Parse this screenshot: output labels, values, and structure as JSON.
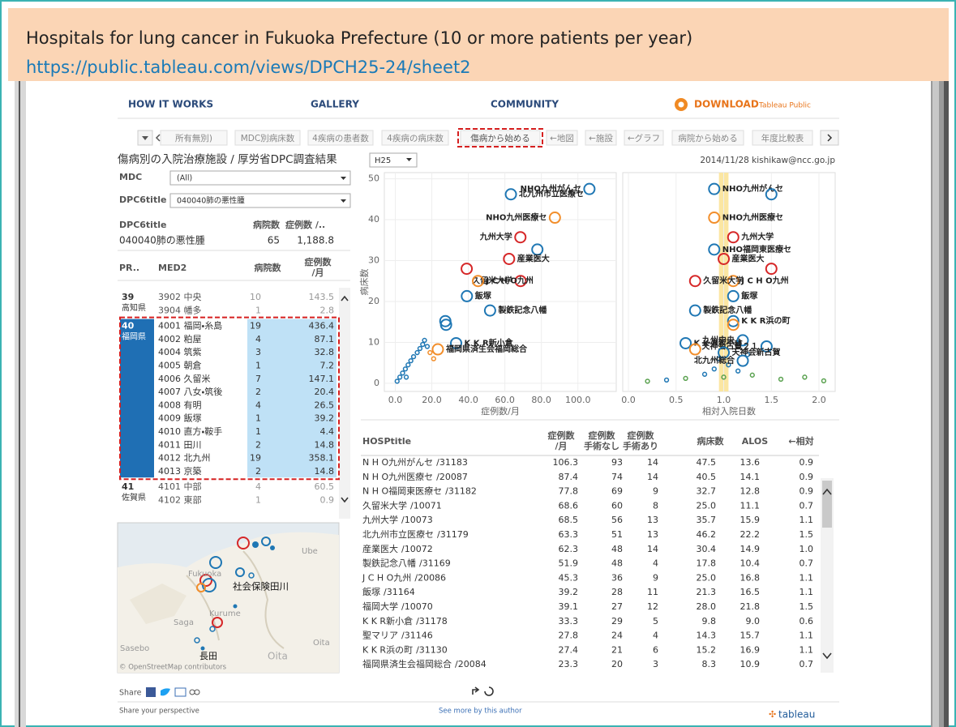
{
  "header": {
    "title": "Hospitals for lung cancer in Fukuoka Prefecture (10 or more patients per year)",
    "url": "https://public.tableau.com/views/DPCH25-24/sheet2"
  },
  "nav": {
    "items": [
      "HOW IT WORKS",
      "GALLERY",
      "COMMUNITY"
    ],
    "download": "DOWNLOAD",
    "download_sub": "Tableau Public"
  },
  "tabs": {
    "items": [
      "所有無別)",
      "MDC別病床数",
      "4疾病の患者数",
      "4疾病の病床数",
      "傷病から始める",
      "←地図",
      "←施設",
      "←グラフ",
      "病院から始める",
      "年度比較表"
    ],
    "active": 4
  },
  "dashboard": {
    "title": "傷病別の入院治療施設 / 厚労省DPC調査結果",
    "year": "H25",
    "credit": "2014/11/28 kishikaw@ncc.go.jp"
  },
  "filters": [
    {
      "label": "MDC",
      "value": "(All)"
    },
    {
      "label": "DPC6title",
      "value": "040040肺の悪性腫"
    }
  ],
  "summary": {
    "headers": [
      "DPC6title",
      "病院数",
      "症例数 /.."
    ],
    "row": [
      "040040肺の悪性腫",
      65,
      {
        "value": 1188.8,
        "label": "1,188.8"
      }
    ]
  },
  "med2_table": {
    "headers": [
      "PR..",
      "MED2",
      "病院数",
      [
        "症例数",
        "/月"
      ]
    ],
    "groups": [
      {
        "code": "39",
        "prefecture": "高知県",
        "rows": [
          [
            "3902 中央",
            10,
            143.5
          ],
          [
            "3904 幡多",
            1,
            2.8
          ]
        ]
      },
      {
        "code": "40",
        "prefecture": "福岡県",
        "selected": true,
        "rows": [
          [
            "4001 福岡・糸島",
            19,
            436.4
          ],
          [
            "4002 粕屋",
            4,
            87.1
          ],
          [
            "4004 筑紫",
            3,
            32.8
          ],
          [
            "4005 朝倉",
            1,
            7.2
          ],
          [
            "4006 久留米",
            7,
            147.1
          ],
          [
            "4007 八女・筑後",
            2,
            20.4
          ],
          [
            "4008 有明",
            4,
            26.5
          ],
          [
            "4009 飯塚",
            1,
            39.2
          ],
          [
            "4010 直方・鞍手",
            1,
            4.4
          ],
          [
            "4011 田川",
            2,
            14.8
          ],
          [
            "4012 北九州",
            19,
            358.1
          ],
          [
            "4013 京築",
            2,
            14.8
          ]
        ]
      },
      {
        "code": "41",
        "prefecture": "佐賀県",
        "rows": [
          [
            "4101 中部",
            4,
            60.5
          ],
          [
            "4102 東部",
            1,
            0.9
          ]
        ]
      }
    ]
  },
  "map": {
    "labels": [
      "Ube",
      "Fukuoka",
      "社会保険田川",
      "Kurume",
      "Saga",
      "Oita",
      "Oita",
      "Sasebo",
      "長田"
    ],
    "attribution": "© OpenStreetMap contributors"
  },
  "scatter_left": {
    "xlim": [
      -6,
      121
    ],
    "ylim": [
      -2,
      51.5
    ],
    "xticks": [
      {
        "value": 0,
        "label": "0.0"
      },
      {
        "value": 20,
        "label": "20.0"
      },
      {
        "value": 40,
        "label": "40.0"
      },
      {
        "value": 60,
        "label": "60.0"
      },
      {
        "value": 80,
        "label": "80.0"
      },
      {
        "value": 100,
        "label": "100.0"
      }
    ],
    "yticks": [
      0,
      10,
      20,
      30,
      40,
      50
    ],
    "xlabel": "症例数/月",
    "ylabel": "病床数",
    "grid": true,
    "points": [
      {
        "label": "NHO九州がんセ",
        "x": 106.3,
        "y": 47.5,
        "color": "#1f77b4"
      },
      {
        "label": "北九州市立医療セ",
        "x": 63.3,
        "y": 46.2,
        "color": "#1f77b4"
      },
      {
        "label": "NHO九州医療セ",
        "x": 87.4,
        "y": 40.5,
        "color": "#f28e2b"
      },
      {
        "label": "九州大学",
        "x": 68.5,
        "y": 35.7,
        "color": "#d62728"
      },
      {
        "x": 77.8,
        "y": 32.7,
        "color": "#1f77b4"
      },
      {
        "label": "産業医大",
        "x": 62.3,
        "y": 30.4,
        "color": "#d62728"
      },
      {
        "x": 39.1,
        "y": 28,
        "color": "#d62728"
      },
      {
        "label": "久留米大学",
        "x": 68.6,
        "y": 25,
        "color": "#d62728"
      },
      {
        "label": "J C H O九州",
        "x": 45.3,
        "y": 25,
        "color": "#f28e2b"
      },
      {
        "label": "飯塚",
        "x": 39.2,
        "y": 21.3,
        "color": "#1f77b4"
      },
      {
        "label": "製鉄記念八幡",
        "x": 51.9,
        "y": 17.8,
        "color": "#1f77b4"
      },
      {
        "x": 27.4,
        "y": 15.2,
        "color": "#1f77b4"
      },
      {
        "x": 27.8,
        "y": 14.3,
        "color": "#1f77b4"
      },
      {
        "label": "K K R新小倉",
        "x": 33.3,
        "y": 9.8,
        "color": "#1f77b4"
      },
      {
        "label": "福岡県済生会福岡総合",
        "x": 23.3,
        "y": 8.3,
        "color": "#f28e2b"
      }
    ],
    "dots": [
      {
        "x": 1,
        "y": 0.5,
        "color": "#1f77b4"
      },
      {
        "x": 2.5,
        "y": 1.5,
        "color": "#1f77b4"
      },
      {
        "x": 4,
        "y": 2.5,
        "color": "#1f77b4"
      },
      {
        "x": 5.5,
        "y": 3.5,
        "color": "#1f77b4"
      },
      {
        "x": 7,
        "y": 4.5,
        "color": "#1f77b4"
      },
      {
        "x": 8.5,
        "y": 5.5,
        "color": "#1f77b4"
      },
      {
        "x": 10,
        "y": 6.5,
        "color": "#1f77b4"
      },
      {
        "x": 12,
        "y": 7.5,
        "color": "#1f77b4"
      },
      {
        "x": 13.5,
        "y": 8.5,
        "color": "#1f77b4"
      },
      {
        "x": 15,
        "y": 9.5,
        "color": "#1f77b4"
      },
      {
        "x": 16,
        "y": 10.5,
        "color": "#1f77b4"
      },
      {
        "x": 17.5,
        "y": 9,
        "color": "#1f77b4"
      },
      {
        "x": 19,
        "y": 7.5,
        "color": "#f28e2b"
      },
      {
        "x": 21,
        "y": 6,
        "color": "#f28e2b"
      },
      {
        "x": 6,
        "y": 1.5,
        "color": "#1f77b4"
      }
    ]
  },
  "scatter_right": {
    "xlim": [
      -0.06,
      2.17
    ],
    "ylim": [
      -2,
      51.5
    ],
    "xticks": [
      {
        "value": 0,
        "label": "0.0"
      },
      0.5,
      {
        "value": 1,
        "label": "1.0"
      },
      1.5,
      {
        "value": 2,
        "label": "2.0"
      }
    ],
    "xlabel": "相対入院日数",
    "grid": true,
    "reference_band": [
      0.95,
      1.05
    ],
    "points": [
      {
        "label": "NHO九州がんセ",
        "x": 0.9,
        "y": 47.5,
        "color": "#1f77b4"
      },
      {
        "x": 1.5,
        "y": 46.2,
        "color": "#1f77b4"
      },
      {
        "label": "NHO九州医療セ",
        "x": 0.9,
        "y": 40.5,
        "color": "#f28e2b"
      },
      {
        "label": "九州大学",
        "x": 1.1,
        "y": 35.7,
        "color": "#d62728"
      },
      {
        "label": "NHO福岡東医療セ",
        "x": 0.9,
        "y": 32.7,
        "color": "#1f77b4"
      },
      {
        "label": "産業医大",
        "x": 1.0,
        "y": 30.4,
        "color": "#d62728"
      },
      {
        "x": 1.5,
        "y": 28,
        "color": "#d62728"
      },
      {
        "label": "J C H O九州",
        "x": 1.1,
        "y": 25,
        "color": "#f28e2b"
      },
      {
        "label": "久留米大学",
        "x": 0.7,
        "y": 25,
        "color": "#d62728"
      },
      {
        "label": "飯塚",
        "x": 1.1,
        "y": 21.3,
        "color": "#1f77b4"
      },
      {
        "label": "製鉄記念八幡",
        "x": 0.7,
        "y": 17.8,
        "color": "#1f77b4"
      },
      {
        "label": "K K R浜の町",
        "x": 1.1,
        "y": 15.2,
        "color": "#1f77b4"
      },
      {
        "x": 1.1,
        "y": 14.3,
        "color": "#f28e2b"
      },
      {
        "label": "K K R新小倉",
        "x": 0.6,
        "y": 9.8,
        "color": "#1f77b4"
      },
      {
        "label": "九州中央",
        "x": 1.2,
        "y": 10.5,
        "color": "#1f77b4"
      },
      {
        "label": "天神会古賀２１",
        "x": 1.45,
        "y": 9,
        "color": "#1f77b4"
      },
      {
        "label": "天神会新古賀",
        "x": 1.0,
        "y": 7.5,
        "color": "#1f77b4"
      },
      {
        "x": 0.7,
        "y": 8.3,
        "color": "#f28e2b"
      },
      {
        "label": "北九州総合",
        "x": 1.2,
        "y": 5.5,
        "color": "#1f77b4"
      }
    ],
    "dots": [
      {
        "x": 0.2,
        "y": 0.5,
        "color": "#59a14f"
      },
      {
        "x": 0.4,
        "y": 0.8,
        "color": "#1f77b4"
      },
      {
        "x": 0.6,
        "y": 1.2,
        "color": "#59a14f"
      },
      {
        "x": 0.8,
        "y": 2.2,
        "color": "#1f77b4"
      },
      {
        "x": 0.9,
        "y": 3.5,
        "color": "#1f77b4"
      },
      {
        "x": 1.0,
        "y": 1.5,
        "color": "#59a14f"
      },
      {
        "x": 1.05,
        "y": 4.5,
        "color": "#1f77b4"
      },
      {
        "x": 1.15,
        "y": 3,
        "color": "#1f77b4"
      },
      {
        "x": 1.3,
        "y": 2,
        "color": "#59a14f"
      },
      {
        "x": 1.6,
        "y": 1,
        "color": "#59a14f"
      },
      {
        "x": 1.85,
        "y": 1.5,
        "color": "#59a14f"
      },
      {
        "x": 2.05,
        "y": 0.6,
        "color": "#59a14f"
      },
      {
        "x": 0.95,
        "y": 6,
        "color": "#1f77b4"
      },
      {
        "x": 1.25,
        "y": 7,
        "color": "#1f77b4"
      }
    ]
  },
  "hospital_table": {
    "headers": [
      "HOSPtitle",
      [
        "症例数",
        "/月"
      ],
      [
        "症例数",
        "手術なし"
      ],
      [
        "症例数",
        "手術あり"
      ],
      "病床数",
      "ALOS",
      "←相対"
    ],
    "rows": [
      {
        "name": "N H O九州がんセ",
        "code": "/31183",
        "cases": 106.3,
        "no_surgery": 93,
        "surgery": 14,
        "beds": 47.5,
        "alos": 13.6,
        "relative": 0.9
      },
      {
        "name": "N H O九州医療セ",
        "code": "/20087",
        "cases": 87.4,
        "no_surgery": 74,
        "surgery": 14,
        "beds": 40.5,
        "alos": 14.1,
        "relative": 0.9
      },
      {
        "name": "N H O福岡東医療セ",
        "code": "/31182",
        "cases": 77.8,
        "no_surgery": 69,
        "surgery": 9,
        "beds": 32.7,
        "alos": 12.8,
        "relative": 0.9
      },
      {
        "name": "久留米大学",
        "code": "/10071",
        "cases": 68.6,
        "no_surgery": 60,
        "surgery": 8,
        "beds": {
          "value": 25,
          "label": "25.0"
        },
        "alos": 11.1,
        "relative": 0.7
      },
      {
        "name": "九州大学",
        "code": "/10073",
        "cases": 68.5,
        "no_surgery": 56,
        "surgery": 13,
        "beds": 35.7,
        "alos": 15.9,
        "relative": 1.1
      },
      {
        "name": "北九州市立医療セ",
        "code": "/31179",
        "cases": 63.3,
        "no_surgery": 51,
        "surgery": 13,
        "beds": 46.2,
        "alos": 22.2,
        "relative": 1.5
      },
      {
        "name": "産業医大",
        "code": "/10072",
        "cases": 62.3,
        "no_surgery": 48,
        "surgery": 14,
        "beds": 30.4,
        "alos": 14.9,
        "relative": {
          "value": 1,
          "label": "1.0"
        }
      },
      {
        "name": "製鉄記念八幡",
        "code": "/31169",
        "cases": 51.9,
        "no_surgery": 48,
        "surgery": 4,
        "beds": 17.8,
        "alos": 10.4,
        "relative": 0.7
      },
      {
        "name": "J C H O九州",
        "code": "/20086",
        "cases": 45.3,
        "no_surgery": 36,
        "surgery": 9,
        "beds": {
          "value": 25,
          "label": "25.0"
        },
        "alos": 16.8,
        "relative": 1.1
      },
      {
        "name": "飯塚",
        "code": "/31164",
        "cases": 39.2,
        "no_surgery": 28,
        "surgery": 11,
        "beds": 21.3,
        "alos": 16.5,
        "relative": 1.1
      },
      {
        "name": "福岡大学",
        "code": "/10070",
        "cases": 39.1,
        "no_surgery": 27,
        "surgery": 12,
        "beds": {
          "value": 28,
          "label": "28.0"
        },
        "alos": 21.8,
        "relative": 1.5
      },
      {
        "name": "K K R新小倉",
        "code": "/31178",
        "cases": 33.3,
        "no_surgery": 29,
        "surgery": 5,
        "beds": 9.8,
        "alos": {
          "value": 9,
          "label": "9.0"
        },
        "relative": 0.6
      },
      {
        "name": "聖マリア",
        "code": "/31146",
        "cases": 27.8,
        "no_surgery": 24,
        "surgery": 4,
        "beds": 14.3,
        "alos": 15.7,
        "relative": 1.1
      },
      {
        "name": "K K R浜の町",
        "code": "/31130",
        "cases": 27.4,
        "no_surgery": 21,
        "surgery": 6,
        "beds": 15.2,
        "alos": 16.9,
        "relative": 1.1
      },
      {
        "name": "福岡県済生会福岡総合",
        "code": "/20084",
        "cases": 23.3,
        "no_surgery": 20,
        "surgery": 3,
        "beds": 8.3,
        "alos": 10.9,
        "relative": 0.7
      }
    ]
  },
  "footer": {
    "share": "Share",
    "perspective": "Share your perspective",
    "more": "See more by this author",
    "logo": "tableau"
  }
}
